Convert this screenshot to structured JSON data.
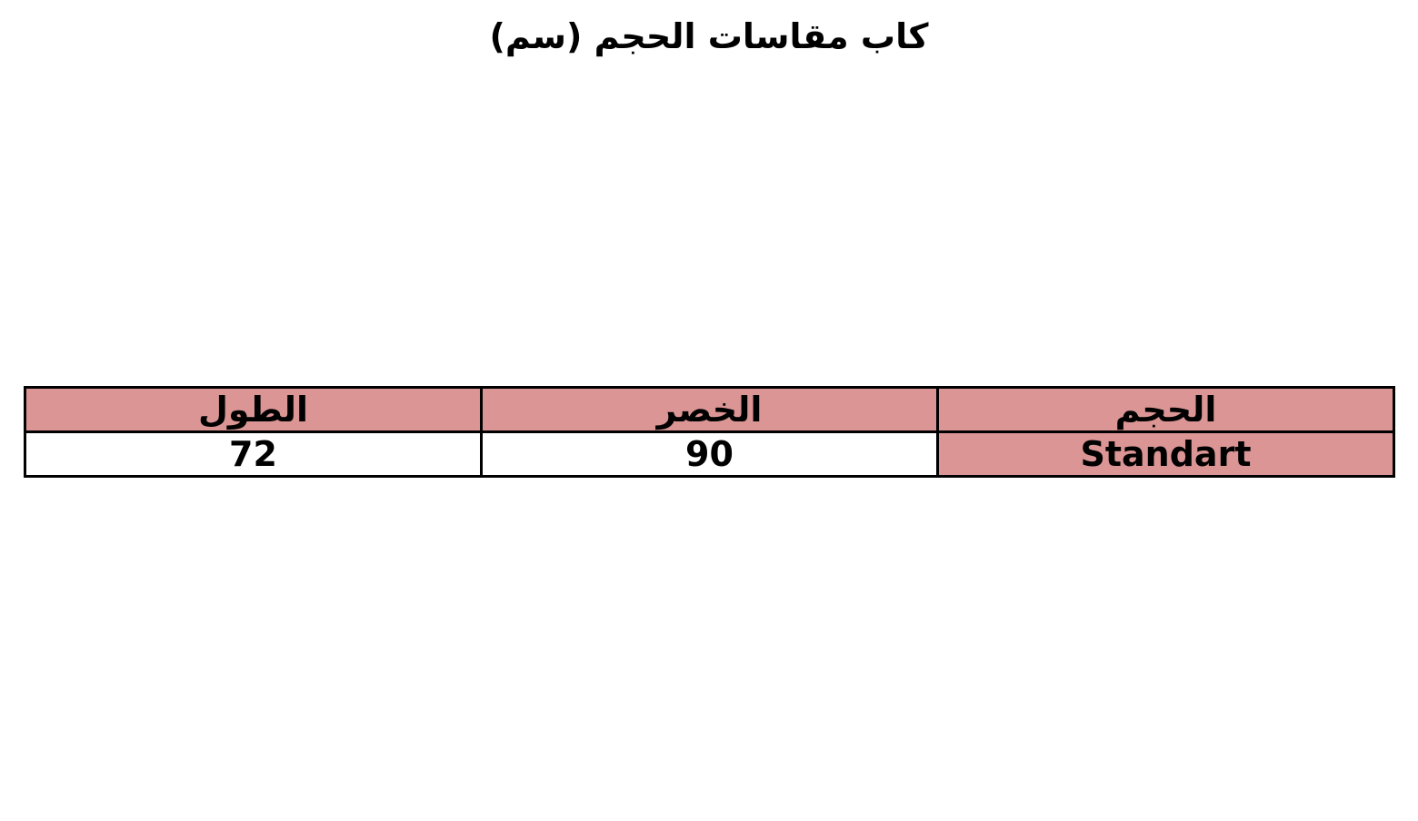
{
  "title": "كاب مقاسات الحجم (سم)",
  "table": {
    "headers": [
      "الحجم",
      "الخصر",
      "الطول"
    ],
    "rows": [
      [
        "Standart",
        "90",
        "72"
      ]
    ]
  },
  "colors": {
    "highlight": "#DA9594",
    "border": "#000000"
  }
}
